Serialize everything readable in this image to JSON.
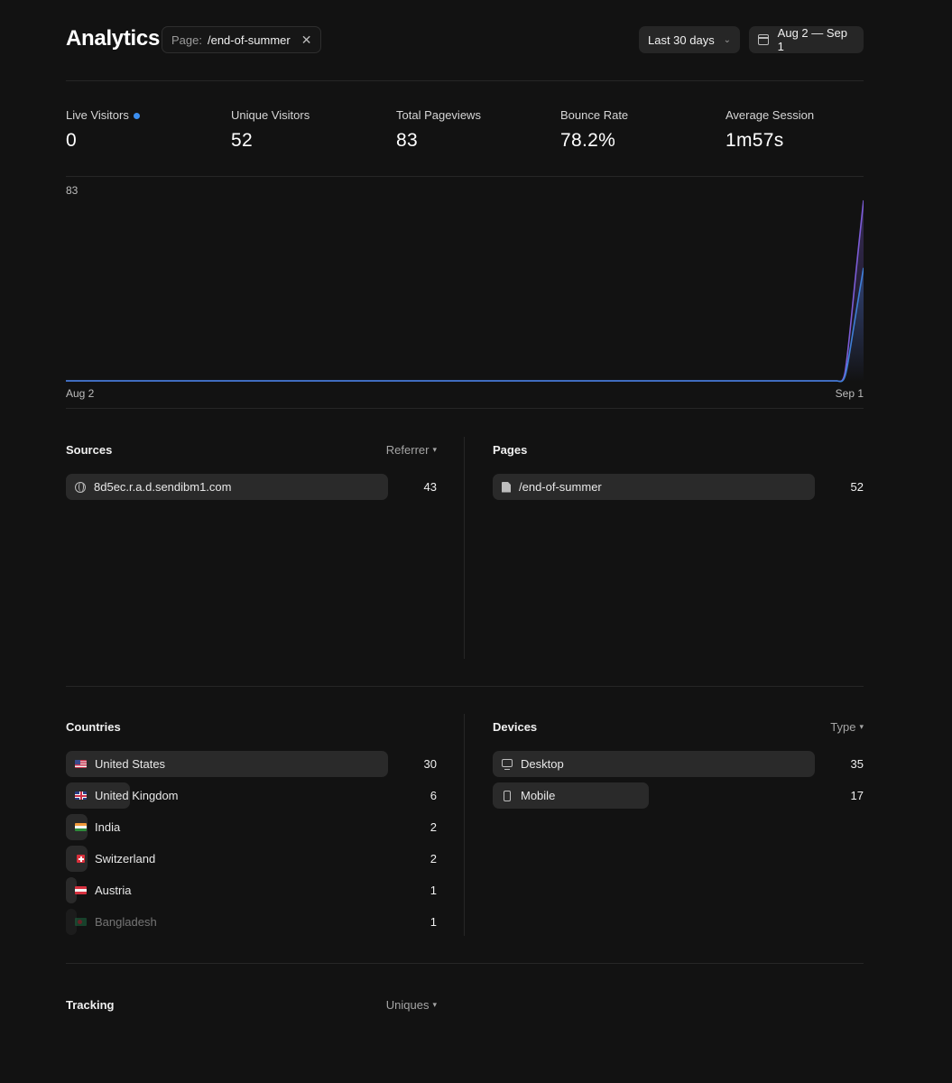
{
  "header": {
    "title": "Analytics",
    "filter_label": "Page:",
    "filter_value": "/end-of-summer",
    "range_label": "Last 30 days",
    "date_range": "Aug 2 — Sep 1"
  },
  "stats": [
    {
      "label": "Live Visitors",
      "value": "0"
    },
    {
      "label": "Unique Visitors",
      "value": "52"
    },
    {
      "label": "Total Pageviews",
      "value": "83"
    },
    {
      "label": "Bounce Rate",
      "value": "78.2%"
    },
    {
      "label": "Average Session",
      "value": "1m57s"
    }
  ],
  "chart_data": {
    "type": "line",
    "x_start_label": "Aug 2",
    "x_end_label": "Sep 1",
    "y_max_label": "83",
    "ylim": [
      0,
      83
    ],
    "series": [
      {
        "color": "#7c5cd6",
        "values": [
          0,
          0,
          0,
          0,
          0,
          0,
          0,
          0,
          0,
          0,
          0,
          0,
          0,
          0,
          0,
          0,
          0,
          0,
          0,
          0,
          0,
          0,
          0,
          0,
          0,
          0,
          0,
          0,
          0,
          0,
          83
        ]
      },
      {
        "color": "#3f7fd8",
        "values": [
          0,
          0,
          0,
          0,
          0,
          0,
          0,
          0,
          0,
          0,
          0,
          0,
          0,
          0,
          0,
          0,
          0,
          0,
          0,
          0,
          0,
          0,
          0,
          0,
          0,
          0,
          0,
          0,
          0,
          0,
          52
        ]
      }
    ]
  },
  "sources": {
    "title": "Sources",
    "select": "Referrer",
    "rows": [
      {
        "label": "8d5ec.r.a.d.sendibm1.com",
        "count": "43",
        "value": 43
      }
    ]
  },
  "pages": {
    "title": "Pages",
    "rows": [
      {
        "label": "/end-of-summer",
        "count": "52",
        "value": 52
      }
    ]
  },
  "countries": {
    "title": "Countries",
    "rows": [
      {
        "label": "United States",
        "count": "30",
        "value": 30,
        "flag": "us"
      },
      {
        "label": "United Kingdom",
        "count": "6",
        "value": 6,
        "flag": "gb"
      },
      {
        "label": "India",
        "count": "2",
        "value": 2,
        "flag": "in"
      },
      {
        "label": "Switzerland",
        "count": "2",
        "value": 2,
        "flag": "ch"
      },
      {
        "label": "Austria",
        "count": "1",
        "value": 1,
        "flag": "at"
      },
      {
        "label": "Bangladesh",
        "count": "1",
        "value": 1,
        "flag": "bd"
      }
    ]
  },
  "devices": {
    "title": "Devices",
    "select": "Type",
    "rows": [
      {
        "label": "Desktop",
        "count": "35",
        "value": 35,
        "icon": "monitor-icon"
      },
      {
        "label": "Mobile",
        "count": "17",
        "value": 17,
        "icon": "phone-icon"
      }
    ]
  },
  "tracking": {
    "title": "Tracking",
    "select": "Uniques"
  }
}
